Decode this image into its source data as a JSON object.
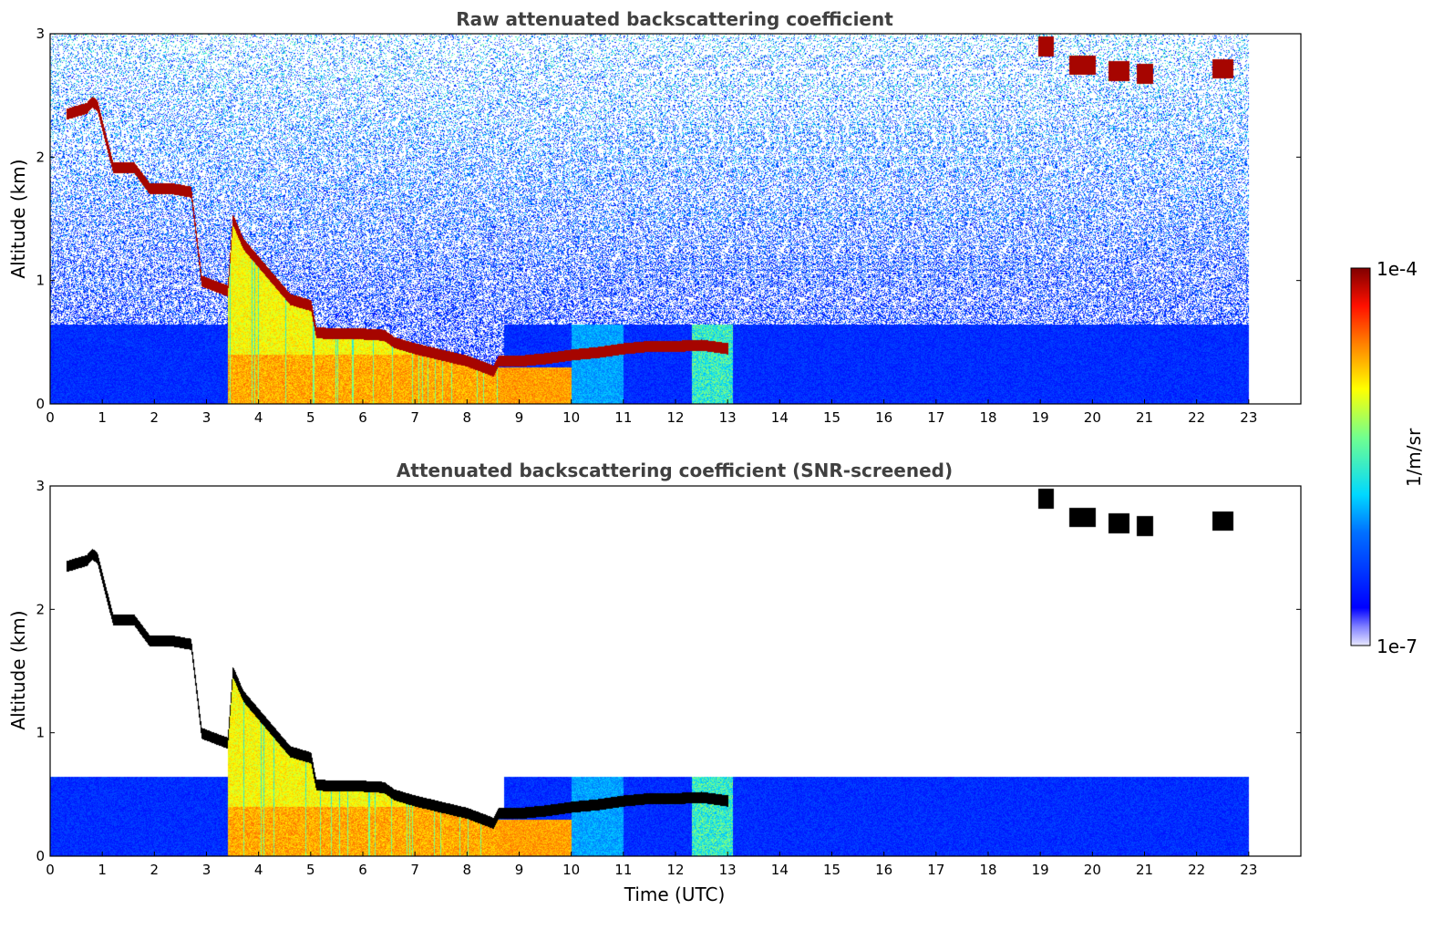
{
  "chart_data": [
    {
      "type": "heatmap",
      "title": "Raw attenuated backscattering coefficient",
      "xlabel": "",
      "ylabel": "Altitude (km)",
      "xlim": [
        0,
        24
      ],
      "ylim": [
        0,
        3
      ],
      "xticks": [
        "0",
        "1",
        "2",
        "3",
        "4",
        "5",
        "6",
        "7",
        "8",
        "9",
        "10",
        "11",
        "12",
        "13",
        "14",
        "15",
        "16",
        "17",
        "18",
        "19",
        "20",
        "21",
        "22",
        "23"
      ],
      "yticks": [
        "0",
        "1",
        "2",
        "3"
      ],
      "data_end_hour": 23,
      "screened": false
    },
    {
      "type": "heatmap",
      "title": "Attenuated backscattering coefficient (SNR-screened)",
      "xlabel": "Time (UTC)",
      "ylabel": "Altitude (km)",
      "xlim": [
        0,
        24
      ],
      "ylim": [
        0,
        3
      ],
      "xticks": [
        "0",
        "1",
        "2",
        "3",
        "4",
        "5",
        "6",
        "7",
        "8",
        "9",
        "10",
        "11",
        "12",
        "13",
        "14",
        "15",
        "16",
        "17",
        "18",
        "19",
        "20",
        "21",
        "22",
        "23"
      ],
      "yticks": [
        "0",
        "1",
        "2",
        "3"
      ],
      "data_end_hour": 23,
      "screened": true
    }
  ],
  "colorbar": {
    "label": "1/m/sr",
    "max_label": "1e-4",
    "min_label": "1e-7",
    "scale": "log",
    "colormap": "jet"
  },
  "features": {
    "cloud_layer": [
      [
        0.3,
        2.35
      ],
      [
        0.7,
        2.4
      ],
      [
        0.8,
        2.45
      ],
      [
        0.9,
        2.42
      ],
      [
        1.2,
        1.92
      ],
      [
        1.6,
        1.92
      ],
      [
        1.9,
        1.75
      ],
      [
        2.3,
        1.75
      ],
      [
        2.7,
        1.72
      ],
      [
        2.9,
        1.0
      ],
      [
        3.2,
        0.95
      ],
      [
        3.4,
        0.92
      ],
      [
        3.5,
        1.5
      ],
      [
        3.7,
        1.3
      ],
      [
        4.0,
        1.15
      ],
      [
        4.3,
        1.0
      ],
      [
        4.6,
        0.85
      ],
      [
        5.0,
        0.8
      ],
      [
        5.1,
        0.58
      ],
      [
        5.5,
        0.57
      ],
      [
        6.0,
        0.57
      ],
      [
        6.4,
        0.56
      ],
      [
        6.6,
        0.5
      ],
      [
        7.0,
        0.45
      ],
      [
        7.5,
        0.4
      ],
      [
        8.0,
        0.35
      ],
      [
        8.5,
        0.27
      ],
      [
        8.6,
        0.35
      ],
      [
        9.0,
        0.35
      ],
      [
        9.5,
        0.37
      ],
      [
        10.0,
        0.4
      ],
      [
        10.5,
        0.42
      ],
      [
        11.0,
        0.45
      ],
      [
        11.5,
        0.47
      ],
      [
        12.0,
        0.47
      ],
      [
        12.5,
        0.48
      ],
      [
        13.0,
        0.45
      ]
    ],
    "upper_clouds": [
      [
        19.1,
        2.9,
        0.15
      ],
      [
        19.8,
        2.75,
        0.25
      ],
      [
        20.5,
        2.7,
        0.2
      ],
      [
        21.0,
        2.68,
        0.15
      ],
      [
        22.5,
        2.72,
        0.2
      ]
    ]
  }
}
